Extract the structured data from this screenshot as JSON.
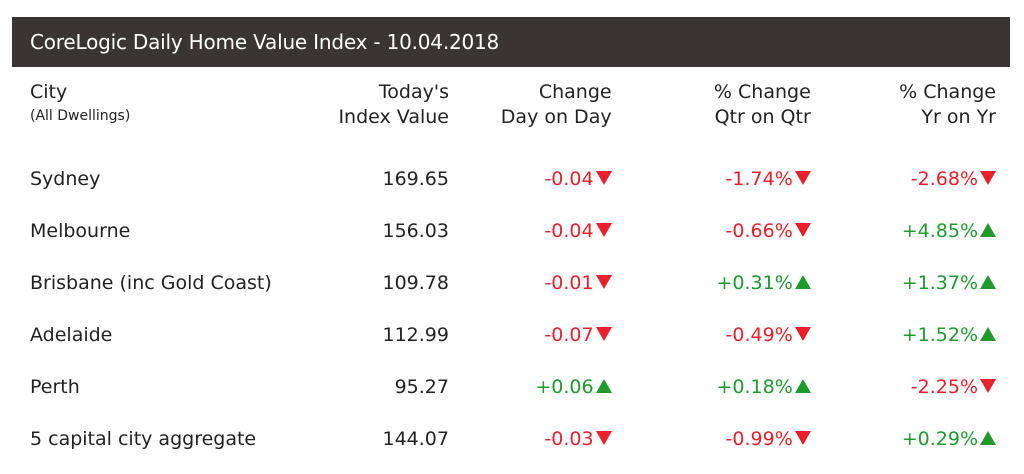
{
  "title": "CoreLogic Daily Home Value Index - 10.04.2018",
  "colors": {
    "title_bg": "#3b3434",
    "negative": "#e8202a",
    "positive": "#1f9a2e"
  },
  "headers": {
    "city": "City",
    "city_sub": "(All Dwellings)",
    "index_1": "Today's",
    "index_2": "Index Value",
    "day_1": "Change",
    "day_2": "Day on Day",
    "qtr_1": "% Change",
    "qtr_2": "Qtr on Qtr",
    "yr_1": "% Change",
    "yr_2": "Yr on Yr"
  },
  "rows": [
    {
      "city": "Sydney",
      "index": "169.65",
      "day": "-0.04",
      "qtr": "-1.74%",
      "yr": "-2.68%"
    },
    {
      "city": "Melbourne",
      "index": "156.03",
      "day": "-0.04",
      "qtr": "-0.66%",
      "yr": "+4.85%"
    },
    {
      "city": "Brisbane (inc Gold Coast)",
      "index": "109.78",
      "day": "-0.01",
      "qtr": "+0.31%",
      "yr": "+1.37%"
    },
    {
      "city": "Adelaide",
      "index": "112.99",
      "day": "-0.07",
      "qtr": "-0.49%",
      "yr": "+1.52%"
    },
    {
      "city": "Perth",
      "index": "95.27",
      "day": "+0.06",
      "qtr": "+0.18%",
      "yr": "-2.25%"
    },
    {
      "city": "5 capital city aggregate",
      "index": "144.07",
      "day": "-0.03",
      "qtr": "-0.99%",
      "yr": "+0.29%"
    }
  ]
}
